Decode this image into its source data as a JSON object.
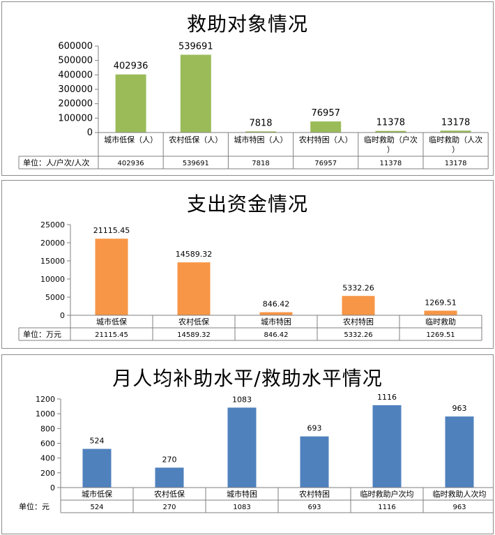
{
  "chart_data": [
    {
      "type": "bar",
      "title": "救助对象情况",
      "categories": [
        "城市低保（人）",
        "农村低保（人）",
        "城市特困（人）",
        "农村特困（人）",
        "临时救助（户次）",
        "临时救助（人次）"
      ],
      "values": [
        402936,
        539691,
        7818,
        76957,
        11378,
        13178
      ],
      "value_labels": [
        "402936",
        "539691",
        "7818",
        "76957",
        "11378",
        "13178"
      ],
      "yticks": [
        "0",
        "100000",
        "200000",
        "300000",
        "400000",
        "500000",
        "600000"
      ],
      "ylim": [
        0,
        600000
      ],
      "color": "#9BBB59",
      "table_label": "单位：人/户次/人次",
      "table_values": [
        "402936",
        "539691",
        "7818",
        "76957",
        "11378",
        "13178"
      ]
    },
    {
      "type": "bar",
      "title": "支出资金情况",
      "categories": [
        "城市低保",
        "农村低保",
        "城市特困",
        "农村特困",
        "临时救助"
      ],
      "values": [
        21115.45,
        14589.32,
        846.42,
        5332.26,
        1269.51
      ],
      "value_labels": [
        "21115.45",
        "14589.32",
        "846.42",
        "5332.26",
        "1269.51"
      ],
      "yticks": [
        "0",
        "5000",
        "10000",
        "15000",
        "20000",
        "25000"
      ],
      "ylim": [
        0,
        25000
      ],
      "color": "#F79646",
      "table_label": "单位：万元",
      "table_values": [
        "21115.45",
        "14589.32",
        "846.42",
        "5332.26",
        "1269.51"
      ]
    },
    {
      "type": "bar",
      "title": "月人均补助水平/救助水平情况",
      "categories": [
        "城市低保",
        "农村低保",
        "城市特困",
        "农村特困",
        "临时救助户次均",
        "临时救助人次均"
      ],
      "values": [
        524,
        270,
        1083,
        693,
        1116,
        963
      ],
      "value_labels": [
        "524",
        "270",
        "1083",
        "693",
        "1116",
        "963"
      ],
      "yticks": [
        "0",
        "200",
        "400",
        "600",
        "800",
        "1000",
        "1200"
      ],
      "ylim": [
        0,
        1200
      ],
      "color": "#4F81BD",
      "table_label": "单位：元",
      "table_values": [
        "524",
        "270",
        "1083",
        "693",
        "1116",
        "963"
      ]
    }
  ]
}
